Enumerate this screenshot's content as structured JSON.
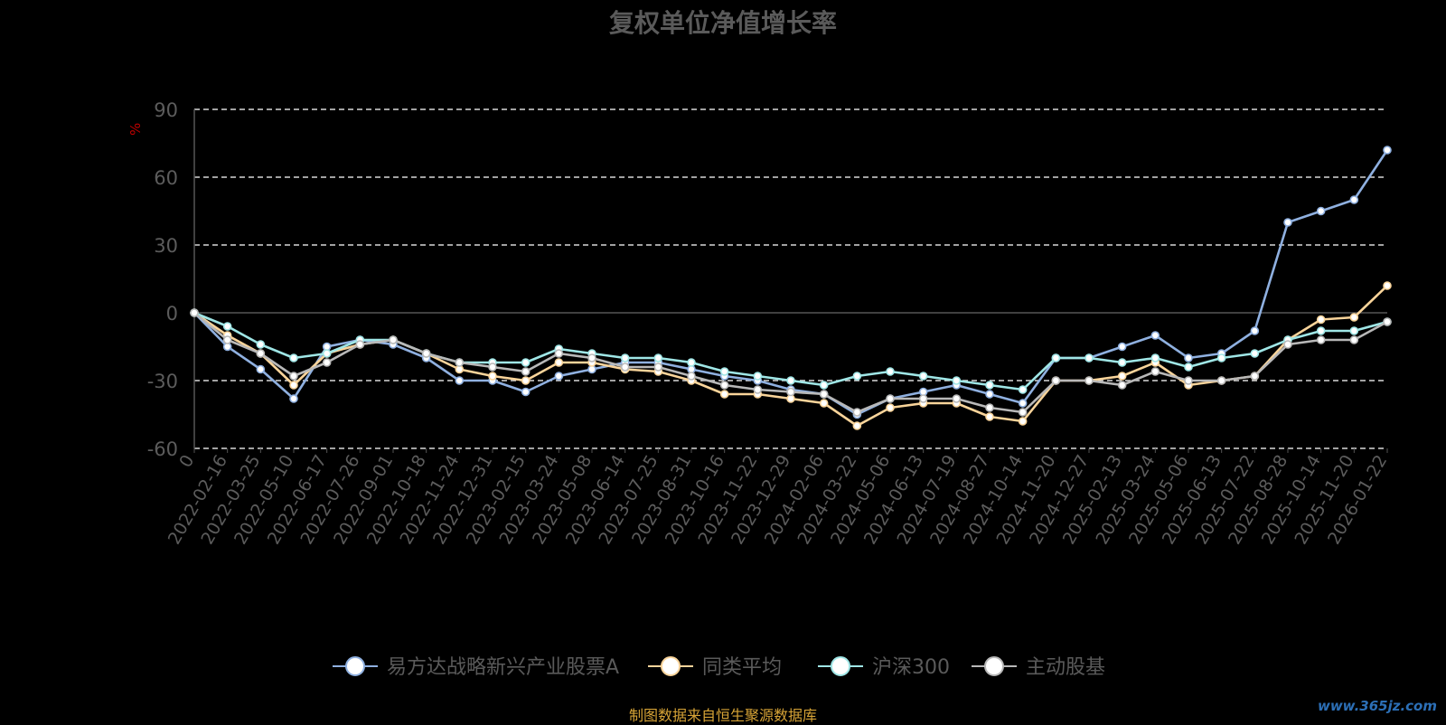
{
  "page": {
    "source_note": "制图数据来自恒生聚源数据库",
    "watermark": "www.365jz.com"
  },
  "chart_data": {
    "type": "line",
    "title": "复权单位净值增长率",
    "ylabel": "%",
    "ylim": [
      -60,
      90
    ],
    "yticks": [
      -60,
      -30,
      0,
      30,
      60,
      90
    ],
    "grid": true,
    "legend_position": "bottom",
    "x_tick_labels": [
      "0",
      "2022-02-16",
      "2022-03-25",
      "2022-05-10",
      "2022-06-17",
      "2022-07-26",
      "2022-09-01",
      "2022-10-18",
      "2022-11-24",
      "2022-12-31",
      "2023-02-15",
      "2023-03-24",
      "2023-05-08",
      "2023-06-14",
      "2023-07-25",
      "2023-08-31",
      "2023-10-16",
      "2023-11-22",
      "2023-12-29",
      "2024-02-06",
      "2024-03-22",
      "2024-05-06",
      "2024-06-13",
      "2024-07-19",
      "2024-08-27",
      "2024-10-14",
      "2024-11-20",
      "2024-12-27",
      "2025-02-13",
      "2025-03-24",
      "2025-05-06",
      "2025-06-13",
      "2025-07-22",
      "2025-08-28",
      "2025-10-14",
      "2025-11-20",
      "2026-01-22"
    ],
    "series": [
      {
        "name": "易方达战略新兴产业股票A",
        "color": "#8fb0e0",
        "values": [
          0,
          -15,
          -25,
          -38,
          -15,
          -12,
          -14,
          -20,
          -30,
          -30,
          -35,
          -28,
          -25,
          -22,
          -22,
          -25,
          -28,
          -30,
          -34,
          -36,
          -45,
          -38,
          -35,
          -32,
          -36,
          -40,
          -20,
          -20,
          -15,
          -10,
          -20,
          -18,
          -8,
          40,
          45,
          50,
          72
        ]
      },
      {
        "name": "同类平均",
        "color": "#f9d49a",
        "values": [
          0,
          -10,
          -18,
          -32,
          -18,
          -14,
          -12,
          -18,
          -25,
          -28,
          -30,
          -22,
          -22,
          -25,
          -26,
          -30,
          -36,
          -36,
          -38,
          -40,
          -50,
          -42,
          -40,
          -40,
          -46,
          -48,
          -30,
          -30,
          -28,
          -22,
          -32,
          -30,
          -28,
          -12,
          -3,
          -2,
          12
        ]
      },
      {
        "name": "沪深300",
        "color": "#9fe6e6",
        "values": [
          0,
          -6,
          -14,
          -20,
          -18,
          -12,
          -12,
          -18,
          -22,
          -22,
          -22,
          -16,
          -18,
          -20,
          -20,
          -22,
          -26,
          -28,
          -30,
          -32,
          -28,
          -26,
          -28,
          -30,
          -32,
          -34,
          -20,
          -20,
          -22,
          -20,
          -24,
          -20,
          -18,
          -12,
          -8,
          -8,
          -4
        ]
      },
      {
        "name": "主动股基",
        "color": "#b8b8b8",
        "values": [
          0,
          -12,
          -18,
          -28,
          -22,
          -14,
          -12,
          -18,
          -22,
          -24,
          -26,
          -18,
          -20,
          -24,
          -24,
          -28,
          -32,
          -34,
          -35,
          -36,
          -44,
          -38,
          -38,
          -38,
          -42,
          -44,
          -30,
          -30,
          -32,
          -26,
          -30,
          -30,
          -28,
          -14,
          -12,
          -12,
          -4
        ]
      }
    ]
  }
}
